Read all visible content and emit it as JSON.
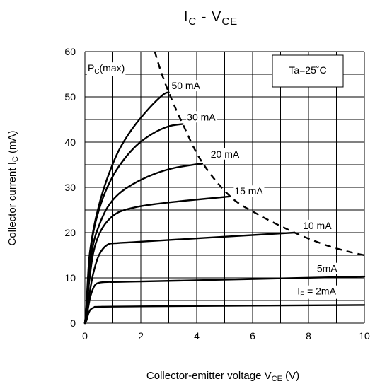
{
  "chart_data": {
    "type": "line",
    "title": {
      "main": "I",
      "main_sub": "C",
      "mid": " - V",
      "mid_sub": "CE"
    },
    "xlabel": {
      "text": "Collector-emitter voltage",
      "var": "V",
      "var_sub": "CE",
      "unit": "(V)"
    },
    "ylabel": {
      "text": "Collector current",
      "var": "I",
      "var_sub": "C",
      "unit": "(mA)"
    },
    "xlim": [
      0,
      10
    ],
    "ylim": [
      0,
      60
    ],
    "xticks": [
      0,
      2,
      4,
      6,
      8,
      10
    ],
    "yticks": [
      0,
      10,
      20,
      30,
      40,
      50,
      60
    ],
    "grid": true,
    "annotation": "Ta=25˚C",
    "series": [
      {
        "name": "IF = 2mA",
        "points": [
          [
            0,
            0
          ],
          [
            0.05,
            0.5
          ],
          [
            0.12,
            2.0
          ],
          [
            0.2,
            3.0
          ],
          [
            0.35,
            3.5
          ],
          [
            0.5,
            3.6
          ],
          [
            2,
            3.7
          ],
          [
            10,
            4.0
          ]
        ]
      },
      {
        "name": "5mA",
        "points": [
          [
            0,
            0
          ],
          [
            0.05,
            1.0
          ],
          [
            0.12,
            3.5
          ],
          [
            0.2,
            6.0
          ],
          [
            0.35,
            8.3
          ],
          [
            0.5,
            8.9
          ],
          [
            0.8,
            9.1
          ],
          [
            2,
            9.2
          ],
          [
            10,
            10.3
          ]
        ]
      },
      {
        "name": "10 mA",
        "points": [
          [
            0,
            0
          ],
          [
            0.05,
            1.5
          ],
          [
            0.15,
            6.0
          ],
          [
            0.3,
            11.0
          ],
          [
            0.5,
            15.0
          ],
          [
            0.8,
            17.3
          ],
          [
            1.2,
            17.7
          ],
          [
            2,
            18.0
          ],
          [
            7.5,
            20.0
          ]
        ]
      },
      {
        "name": "15 mA",
        "points": [
          [
            0,
            0
          ],
          [
            0.05,
            2.0
          ],
          [
            0.15,
            9.0
          ],
          [
            0.3,
            15.5
          ],
          [
            0.5,
            19.5
          ],
          [
            0.8,
            22.5
          ],
          [
            1.2,
            24.5
          ],
          [
            1.8,
            25.6
          ],
          [
            2.5,
            26.3
          ],
          [
            3.5,
            27.0
          ],
          [
            5.2,
            28.0
          ]
        ]
      },
      {
        "name": "20 mA",
        "points": [
          [
            0,
            0
          ],
          [
            0.05,
            2.5
          ],
          [
            0.15,
            11.0
          ],
          [
            0.3,
            17.5
          ],
          [
            0.5,
            21.5
          ],
          [
            0.8,
            25.5
          ],
          [
            1.2,
            28.5
          ],
          [
            1.8,
            31.0
          ],
          [
            2.5,
            33.0
          ],
          [
            3.2,
            34.3
          ],
          [
            4.2,
            35.3
          ]
        ]
      },
      {
        "name": "30 mA",
        "points": [
          [
            0,
            0
          ],
          [
            0.05,
            3.0
          ],
          [
            0.15,
            13.0
          ],
          [
            0.3,
            20.0
          ],
          [
            0.5,
            25.0
          ],
          [
            0.8,
            30.0
          ],
          [
            1.2,
            34.5
          ],
          [
            1.8,
            39.0
          ],
          [
            2.4,
            41.8
          ],
          [
            3.0,
            43.5
          ],
          [
            3.5,
            44.0
          ]
        ]
      },
      {
        "name": "50 mA",
        "points": [
          [
            0,
            0
          ],
          [
            0.05,
            3.5
          ],
          [
            0.15,
            14.0
          ],
          [
            0.3,
            20.5
          ],
          [
            0.5,
            26.0
          ],
          [
            0.8,
            32.0
          ],
          [
            1.2,
            38.0
          ],
          [
            1.7,
            43.0
          ],
          [
            2.3,
            47.5
          ],
          [
            2.8,
            50.5
          ],
          [
            3.0,
            51.0
          ]
        ]
      }
    ],
    "pc_max": {
      "name": "PC(max)",
      "name_main": "P",
      "name_sub": "C",
      "name_rest": "(max)",
      "points": [
        [
          2.5,
          60
        ],
        [
          2.7,
          56
        ],
        [
          3.0,
          51
        ],
        [
          3.5,
          44
        ],
        [
          4.2,
          35.5
        ],
        [
          5.2,
          28
        ],
        [
          6.2,
          24
        ],
        [
          7.5,
          20
        ],
        [
          8.5,
          17.5
        ],
        [
          9.3,
          16
        ],
        [
          10,
          15
        ]
      ]
    }
  }
}
